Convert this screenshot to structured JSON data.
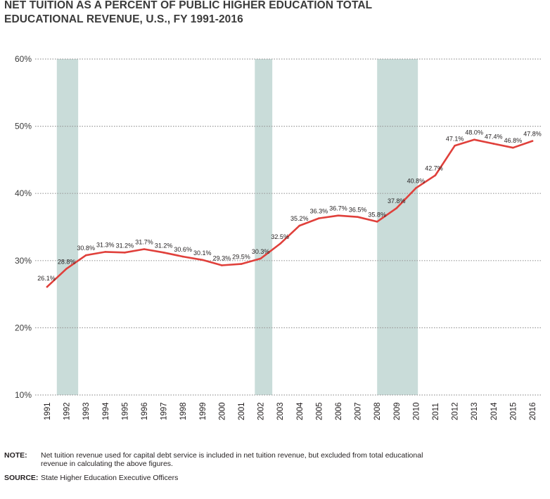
{
  "title": {
    "line1": "NET TUITION AS A PERCENT OF PUBLIC HIGHER EDUCATION TOTAL",
    "line2": "EDUCATIONAL REVENUE, U.S., FY 1991-2016"
  },
  "notes": {
    "note_label": "NOTE:",
    "note_text": "Net tuition revenue used for capital debt service is included in net tuition revenue, but excluded from total educational revenue in calculating the above figures.",
    "source_label": "SOURCE:",
    "source_text": "State Higher Education Executive Officers"
  },
  "colors": {
    "line": "#e0403b",
    "recession_band": "#c9dcd9",
    "grid": "#9a9a9a"
  },
  "chart_data": {
    "type": "line",
    "title": "NET TUITION AS A PERCENT OF PUBLIC HIGHER EDUCATION TOTAL EDUCATIONAL REVENUE, U.S., FY 1991-2016",
    "xlabel": "",
    "ylabel": "",
    "ylim": [
      10,
      60
    ],
    "yticks": [
      "10%",
      "20%",
      "30%",
      "40%",
      "50%",
      "60%"
    ],
    "ytick_values": [
      10,
      20,
      30,
      40,
      50,
      60
    ],
    "grid": "dotted horizontal",
    "categories": [
      "1991",
      "1992",
      "1993",
      "1994",
      "1995",
      "1996",
      "1997",
      "1998",
      "1999",
      "2000",
      "2001",
      "2002",
      "2003",
      "2004",
      "2005",
      "2006",
      "2007",
      "2008",
      "2009",
      "2010",
      "2011",
      "2012",
      "2013",
      "2014",
      "2015",
      "2016"
    ],
    "series": [
      {
        "values": [
          26.1,
          28.8,
          30.8,
          31.3,
          31.2,
          31.7,
          31.2,
          30.6,
          30.1,
          29.3,
          29.5,
          30.3,
          32.5,
          35.2,
          36.3,
          36.7,
          36.5,
          35.8,
          37.8,
          40.8,
          42.7,
          47.1,
          48.0,
          47.4,
          46.8,
          47.8
        ],
        "labels": [
          "26.1%",
          "28.8%",
          "30.8%",
          "31.3%",
          "31.2%",
          "31.7%",
          "31.2%",
          "30.6%",
          "30.1%",
          "29.3%",
          "29.5%",
          "30.3%",
          "32.5%",
          "35.2%",
          "36.3%",
          "36.7%",
          "36.5%",
          "35.8%",
          "37.8%",
          "40.8%",
          "42.7%",
          "47.1%",
          "48.0%",
          "47.4%",
          "46.8%",
          "47.8%"
        ]
      }
    ],
    "recession_bands": [
      {
        "from": 1991.5,
        "to": 1992.6
      },
      {
        "from": 2001.7,
        "to": 2002.6
      },
      {
        "from": 2008.0,
        "to": 2010.1
      }
    ]
  }
}
